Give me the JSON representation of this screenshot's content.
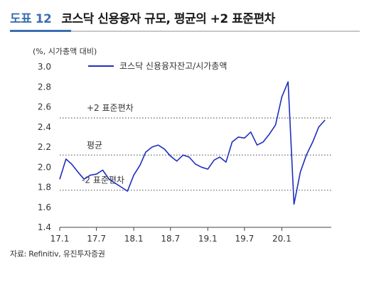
{
  "header": {
    "figure_no": "도표 12",
    "title": "코스닥 신용융자 규모, 평균의 +2 표준편차"
  },
  "unit_label": "(%, 시가총액 대비)",
  "source": "자료: Refinitiv, 유진투자증권",
  "colors": {
    "series": "#1f2fbf",
    "reference": "#888888",
    "accent": "#3b6fb0"
  },
  "chart_data": {
    "type": "line",
    "ylim": [
      1.4,
      3.0
    ],
    "yticks": [
      "1.4",
      "1.6",
      "1.8",
      "2.0",
      "2.2",
      "2.4",
      "2.6",
      "2.8",
      "3.0"
    ],
    "xticks": [
      "17.1",
      "17.7",
      "18.1",
      "18.7",
      "19.1",
      "19.7",
      "20.1"
    ],
    "legend": {
      "position": "top",
      "label": "코스닥 신용융자잔고/시가총액"
    },
    "reference_lines": [
      {
        "label": "+2 표준편차",
        "value": 2.49,
        "style": "dotted"
      },
      {
        "label": "평균",
        "value": 2.12,
        "style": "dotted"
      },
      {
        "label": "-2 표준편차",
        "value": 1.77,
        "style": "dotted"
      }
    ],
    "series": [
      {
        "name": "코스닥 신용융자잔고/시가총액",
        "x": [
          "2017-01",
          "2017-02",
          "2017-03",
          "2017-04",
          "2017-05",
          "2017-06",
          "2017-07",
          "2017-08",
          "2017-09",
          "2017-10",
          "2017-11",
          "2017-12",
          "2018-01",
          "2018-02",
          "2018-03",
          "2018-04",
          "2018-05",
          "2018-06",
          "2018-07",
          "2018-08",
          "2018-09",
          "2018-10",
          "2018-11",
          "2018-12",
          "2019-01",
          "2019-02",
          "2019-03",
          "2019-04",
          "2019-05",
          "2019-06",
          "2019-07",
          "2019-08",
          "2019-09",
          "2019-10",
          "2019-11",
          "2019-12",
          "2020-01",
          "2020-02",
          "2020-03",
          "2020-04",
          "2020-05",
          "2020-06",
          "2020-07",
          "2020-08"
        ],
        "values": [
          1.88,
          2.08,
          2.03,
          1.95,
          1.88,
          1.92,
          1.93,
          1.97,
          1.88,
          1.84,
          1.8,
          1.76,
          1.92,
          2.02,
          2.15,
          2.2,
          2.22,
          2.18,
          2.11,
          2.06,
          2.12,
          2.1,
          2.03,
          2.0,
          1.98,
          2.07,
          2.1,
          2.05,
          2.25,
          2.3,
          2.29,
          2.35,
          2.22,
          2.25,
          2.33,
          2.42,
          2.7,
          2.85,
          1.63,
          1.95,
          2.12,
          2.25,
          2.4,
          2.47
        ]
      }
    ]
  }
}
